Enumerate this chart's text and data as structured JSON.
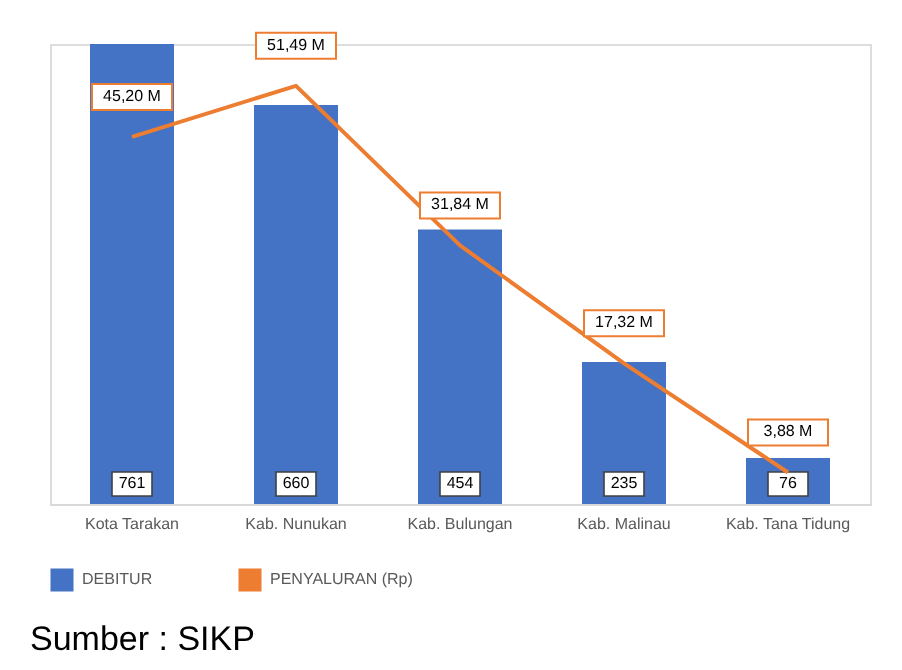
{
  "chart_data": {
    "type": "bar",
    "categories": [
      "Kota Tarakan",
      "Kab. Nunukan",
      "Kab. Bulungan",
      "Kab. Malinau",
      "Kab. Tana Tidung"
    ],
    "series": [
      {
        "name": "DEBITUR",
        "type": "bar",
        "color": "#4472c4",
        "values": [
          761,
          660,
          454,
          235,
          76
        ],
        "value_labels": [
          "761",
          "660",
          "454",
          "235",
          "76"
        ]
      },
      {
        "name": "PENYALURAN (Rp)",
        "type": "line",
        "axis": "y2",
        "color": "#ed7d31",
        "values": [
          45.2,
          51.49,
          31.84,
          17.32,
          3.88
        ],
        "value_labels": [
          "45,20 M",
          "51,49 M",
          "31,84 M",
          "17,32 M",
          "3,88 M"
        ]
      }
    ],
    "legend": "bottom",
    "grid": false,
    "marker": "none",
    "annotations": [
      "Sumber : SIKP"
    ]
  }
}
